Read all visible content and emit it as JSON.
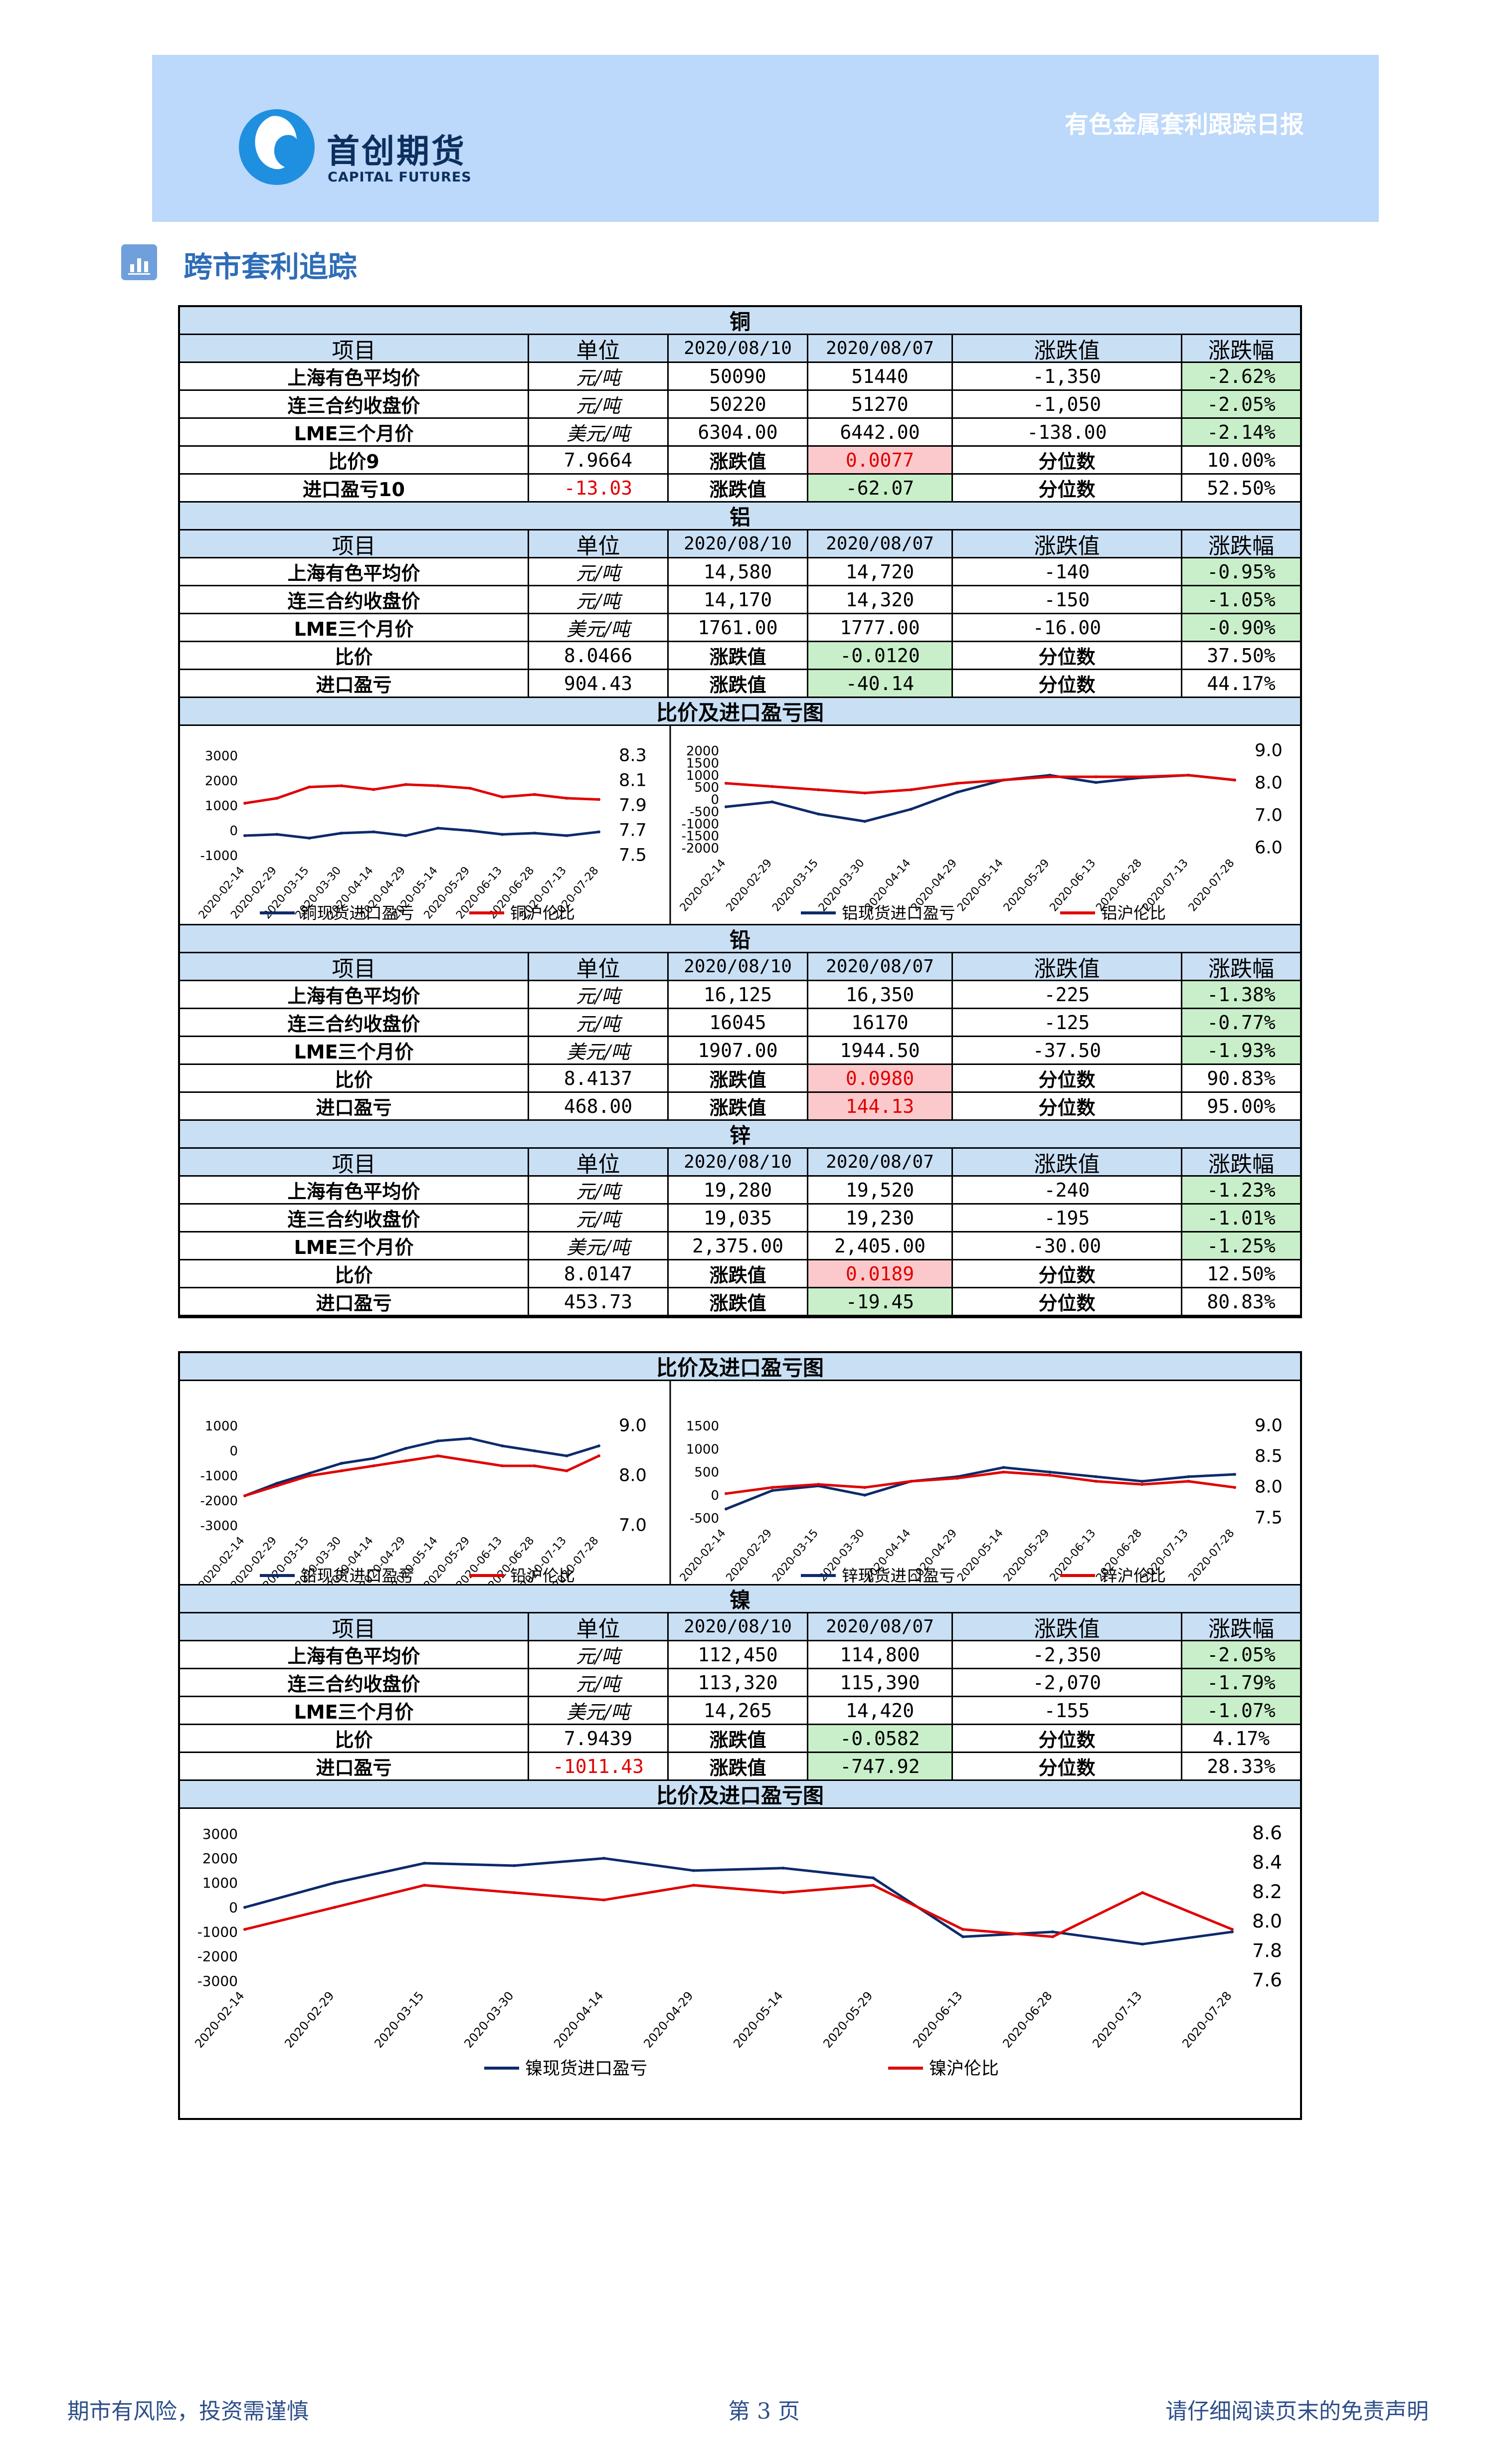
{
  "header": {
    "company_cn": "首创期货",
    "company_en": "CAPITAL FUTURES",
    "report_title": "有色金属套利跟踪日报"
  },
  "section_title": "跨市套利追踪",
  "colors": {
    "blue_series": "#0d2a6b",
    "red_series": "#e00000",
    "header_bg": "#c9dff4"
  },
  "columns": {
    "item": "项目",
    "unit": "单位",
    "date1": "2020/08/10",
    "date2": "2020/08/07",
    "change": "涨跌值",
    "pct": "涨跌幅"
  },
  "labels": {
    "change": "涨跌值",
    "percentile": "分位数"
  },
  "chart_title": "比价及进口盈亏图",
  "metals": [
    {
      "name": "铜",
      "rows": [
        {
          "item": "上海有色平均价",
          "unit": "元/吨",
          "v1": "50090",
          "v2": "51440",
          "change": "-1,350",
          "pct": "-2.62%"
        },
        {
          "item": "连三合约收盘价",
          "unit": "元/吨",
          "v1": "50220",
          "v2": "51270",
          "change": "-1,050",
          "pct": "-2.05%"
        },
        {
          "item": "LME三个月价",
          "unit": "美元/吨",
          "v1": "6304.00",
          "v2": "6442.00",
          "change": "-138.00",
          "pct": "-2.14%"
        }
      ],
      "ratio": {
        "label": "比价9",
        "value": "7.9664",
        "change": "0.0077",
        "percentile": "10.00%"
      },
      "import": {
        "label": "进口盈亏10",
        "value": "-13.03",
        "change": "-62.07",
        "percentile": "52.50%"
      }
    },
    {
      "name": "铝",
      "rows": [
        {
          "item": "上海有色平均价",
          "unit": "元/吨",
          "v1": "14,580",
          "v2": "14,720",
          "change": "-140",
          "pct": "-0.95%"
        },
        {
          "item": "连三合约收盘价",
          "unit": "元/吨",
          "v1": "14,170",
          "v2": "14,320",
          "change": "-150",
          "pct": "-1.05%"
        },
        {
          "item": "LME三个月价",
          "unit": "美元/吨",
          "v1": "1761.00",
          "v2": "1777.00",
          "change": "-16.00",
          "pct": "-0.90%"
        }
      ],
      "ratio": {
        "label": "比价",
        "value": "8.0466",
        "change": "-0.0120",
        "percentile": "37.50%"
      },
      "import": {
        "label": "进口盈亏",
        "value": "904.43",
        "change": "-40.14",
        "percentile": "44.17%"
      }
    },
    {
      "name": "铅",
      "rows": [
        {
          "item": "上海有色平均价",
          "unit": "元/吨",
          "v1": "16,125",
          "v2": "16,350",
          "change": "-225",
          "pct": "-1.38%"
        },
        {
          "item": "连三合约收盘价",
          "unit": "元/吨",
          "v1": "16045",
          "v2": "16170",
          "change": "-125",
          "pct": "-0.77%"
        },
        {
          "item": "LME三个月价",
          "unit": "美元/吨",
          "v1": "1907.00",
          "v2": "1944.50",
          "change": "-37.50",
          "pct": "-1.93%"
        }
      ],
      "ratio": {
        "label": "比价",
        "value": "8.4137",
        "change": "0.0980",
        "percentile": "90.83%"
      },
      "import": {
        "label": "进口盈亏",
        "value": "468.00",
        "change": "144.13",
        "percentile": "95.00%"
      }
    },
    {
      "name": "锌",
      "rows": [
        {
          "item": "上海有色平均价",
          "unit": "元/吨",
          "v1": "19,280",
          "v2": "19,520",
          "change": "-240",
          "pct": "-1.23%"
        },
        {
          "item": "连三合约收盘价",
          "unit": "元/吨",
          "v1": "19,035",
          "v2": "19,230",
          "change": "-195",
          "pct": "-1.01%"
        },
        {
          "item": "LME三个月价",
          "unit": "美元/吨",
          "v1": "2,375.00",
          "v2": "2,405.00",
          "change": "-30.00",
          "pct": "-1.25%"
        }
      ],
      "ratio": {
        "label": "比价",
        "value": "8.0147",
        "change": "0.0189",
        "percentile": "12.50%"
      },
      "import": {
        "label": "进口盈亏",
        "value": "453.73",
        "change": "-19.45",
        "percentile": "80.83%"
      }
    },
    {
      "name": "镍",
      "rows": [
        {
          "item": "上海有色平均价",
          "unit": "元/吨",
          "v1": "112,450",
          "v2": "114,800",
          "change": "-2,350",
          "pct": "-2.05%"
        },
        {
          "item": "连三合约收盘价",
          "unit": "元/吨",
          "v1": "113,320",
          "v2": "115,390",
          "change": "-2,070",
          "pct": "-1.79%"
        },
        {
          "item": "LME三个月价",
          "unit": "美元/吨",
          "v1": "14,265",
          "v2": "14,420",
          "change": "-155",
          "pct": "-1.07%"
        }
      ],
      "ratio": {
        "label": "比价",
        "value": "7.9439",
        "change": "-0.0582",
        "percentile": "4.17%"
      },
      "import": {
        "label": "进口盈亏",
        "value": "-1011.43",
        "change": "-747.92",
        "percentile": "28.33%"
      }
    }
  ],
  "chart_data": [
    {
      "type": "line",
      "x": [
        "2020-02-14",
        "2020-02-29",
        "2020-03-15",
        "2020-03-30",
        "2020-04-14",
        "2020-04-29",
        "2020-05-14",
        "2020-05-29",
        "2020-06-13",
        "2020-06-28",
        "2020-07-13",
        "2020-07-28"
      ],
      "left_axis": {
        "ticks": [
          "3000",
          "2000",
          "1000",
          "0",
          "-1000"
        ],
        "ylim": [
          -1000,
          3000
        ]
      },
      "right_axis": {
        "ticks": [
          "8.3",
          "8.1",
          "7.9",
          "7.7",
          "7.5"
        ],
        "ylim": [
          7.5,
          8.3
        ]
      },
      "series": [
        {
          "name": "铜现货进口盈亏",
          "axis": "left",
          "values": [
            -200,
            -150,
            -300,
            -100,
            -50,
            -200,
            100,
            0,
            -150,
            -100,
            -200,
            -50
          ]
        },
        {
          "name": "铜沪伦比",
          "axis": "right",
          "values": [
            7.92,
            7.96,
            8.05,
            8.06,
            8.03,
            8.07,
            8.06,
            8.04,
            7.97,
            7.99,
            7.96,
            7.95
          ]
        }
      ]
    },
    {
      "type": "line",
      "x": [
        "2020-02-14",
        "2020-02-29",
        "2020-03-15",
        "2020-03-30",
        "2020-04-14",
        "2020-04-29",
        "2020-05-14",
        "2020-05-29",
        "2020-06-13",
        "2020-06-28",
        "2020-07-13",
        "2020-07-28"
      ],
      "left_axis": {
        "ticks": [
          "2000",
          "1500",
          "1000",
          "500",
          "0",
          "-500",
          "-1000",
          "-1500",
          "-2000"
        ],
        "ylim": [
          -2000,
          2000
        ]
      },
      "right_axis": {
        "ticks": [
          "9.0",
          "8.0",
          "7.0",
          "6.0"
        ],
        "ylim": [
          6.0,
          9.0
        ]
      },
      "series": [
        {
          "name": "铝现货进口盈亏",
          "axis": "left",
          "values": [
            -300,
            -100,
            -600,
            -900,
            -400,
            300,
            800,
            1000,
            700,
            900,
            1000,
            800
          ]
        },
        {
          "name": "铝沪伦比",
          "axis": "right",
          "values": [
            8.0,
            7.9,
            7.8,
            7.7,
            7.8,
            8.0,
            8.1,
            8.2,
            8.2,
            8.2,
            8.25,
            8.1
          ]
        }
      ]
    },
    {
      "type": "line",
      "x": [
        "2020-02-14",
        "2020-02-29",
        "2020-03-15",
        "2020-03-30",
        "2020-04-14",
        "2020-04-29",
        "2020-05-14",
        "2020-05-29",
        "2020-06-13",
        "2020-06-28",
        "2020-07-13",
        "2020-07-28"
      ],
      "left_axis": {
        "ticks": [
          "1000",
          "0",
          "-1000",
          "-2000",
          "-3000"
        ],
        "ylim": [
          -3000,
          1000
        ]
      },
      "right_axis": {
        "ticks": [
          "9.0",
          "8.0",
          "7.0"
        ],
        "ylim": [
          7.0,
          9.0
        ]
      },
      "series": [
        {
          "name": "铅现货进口盈亏",
          "axis": "left",
          "values": [
            -1800,
            -1300,
            -900,
            -500,
            -300,
            100,
            400,
            500,
            200,
            0,
            -200,
            200
          ]
        },
        {
          "name": "铅沪伦比",
          "axis": "right",
          "values": [
            7.6,
            7.8,
            8.0,
            8.1,
            8.2,
            8.3,
            8.4,
            8.3,
            8.2,
            8.2,
            8.1,
            8.4
          ]
        }
      ]
    },
    {
      "type": "line",
      "x": [
        "2020-02-14",
        "2020-02-29",
        "2020-03-15",
        "2020-03-30",
        "2020-04-14",
        "2020-04-29",
        "2020-05-14",
        "2020-05-29",
        "2020-06-13",
        "2020-06-28",
        "2020-07-13",
        "2020-07-28"
      ],
      "left_axis": {
        "ticks": [
          "1500",
          "1000",
          "500",
          "0",
          "-500"
        ],
        "ylim": [
          -500,
          1500
        ]
      },
      "right_axis": {
        "ticks": [
          "9.0",
          "8.5",
          "8.0",
          "7.5"
        ],
        "ylim": [
          7.5,
          9.0
        ]
      },
      "series": [
        {
          "name": "锌现货进口盈亏",
          "axis": "left",
          "values": [
            -300,
            100,
            200,
            0,
            300,
            400,
            600,
            500,
            400,
            300,
            400,
            450
          ]
        },
        {
          "name": "锌沪伦比",
          "axis": "right",
          "values": [
            7.9,
            8.0,
            8.05,
            8.0,
            8.1,
            8.15,
            8.25,
            8.2,
            8.1,
            8.05,
            8.1,
            8.0
          ]
        }
      ]
    },
    {
      "type": "line",
      "x": [
        "2020-02-14",
        "2020-02-29",
        "2020-03-15",
        "2020-03-30",
        "2020-04-14",
        "2020-04-29",
        "2020-05-14",
        "2020-05-29",
        "2020-06-13",
        "2020-06-28",
        "2020-07-13",
        "2020-07-28"
      ],
      "left_axis": {
        "ticks": [
          "3000",
          "2000",
          "1000",
          "0",
          "-1000",
          "-2000",
          "-3000"
        ],
        "ylim": [
          -3000,
          3000
        ]
      },
      "right_axis": {
        "ticks": [
          "8.6",
          "8.4",
          "8.2",
          "8.0",
          "7.8",
          "7.6"
        ],
        "ylim": [
          7.6,
          8.6
        ]
      },
      "series": [
        {
          "name": "镍现货进口盈亏",
          "axis": "left",
          "values": [
            0,
            1000,
            1800,
            1700,
            2000,
            1500,
            1600,
            1200,
            -1200,
            -1000,
            -1500,
            -1000
          ]
        },
        {
          "name": "镍沪伦比",
          "axis": "right",
          "values": [
            7.95,
            8.1,
            8.25,
            8.2,
            8.15,
            8.25,
            8.2,
            8.25,
            7.95,
            7.9,
            8.2,
            7.95
          ]
        }
      ]
    }
  ],
  "footer": {
    "left": "期市有风险，投资需谨慎",
    "center": "第 3 页",
    "right": "请仔细阅读页末的免责声明"
  }
}
